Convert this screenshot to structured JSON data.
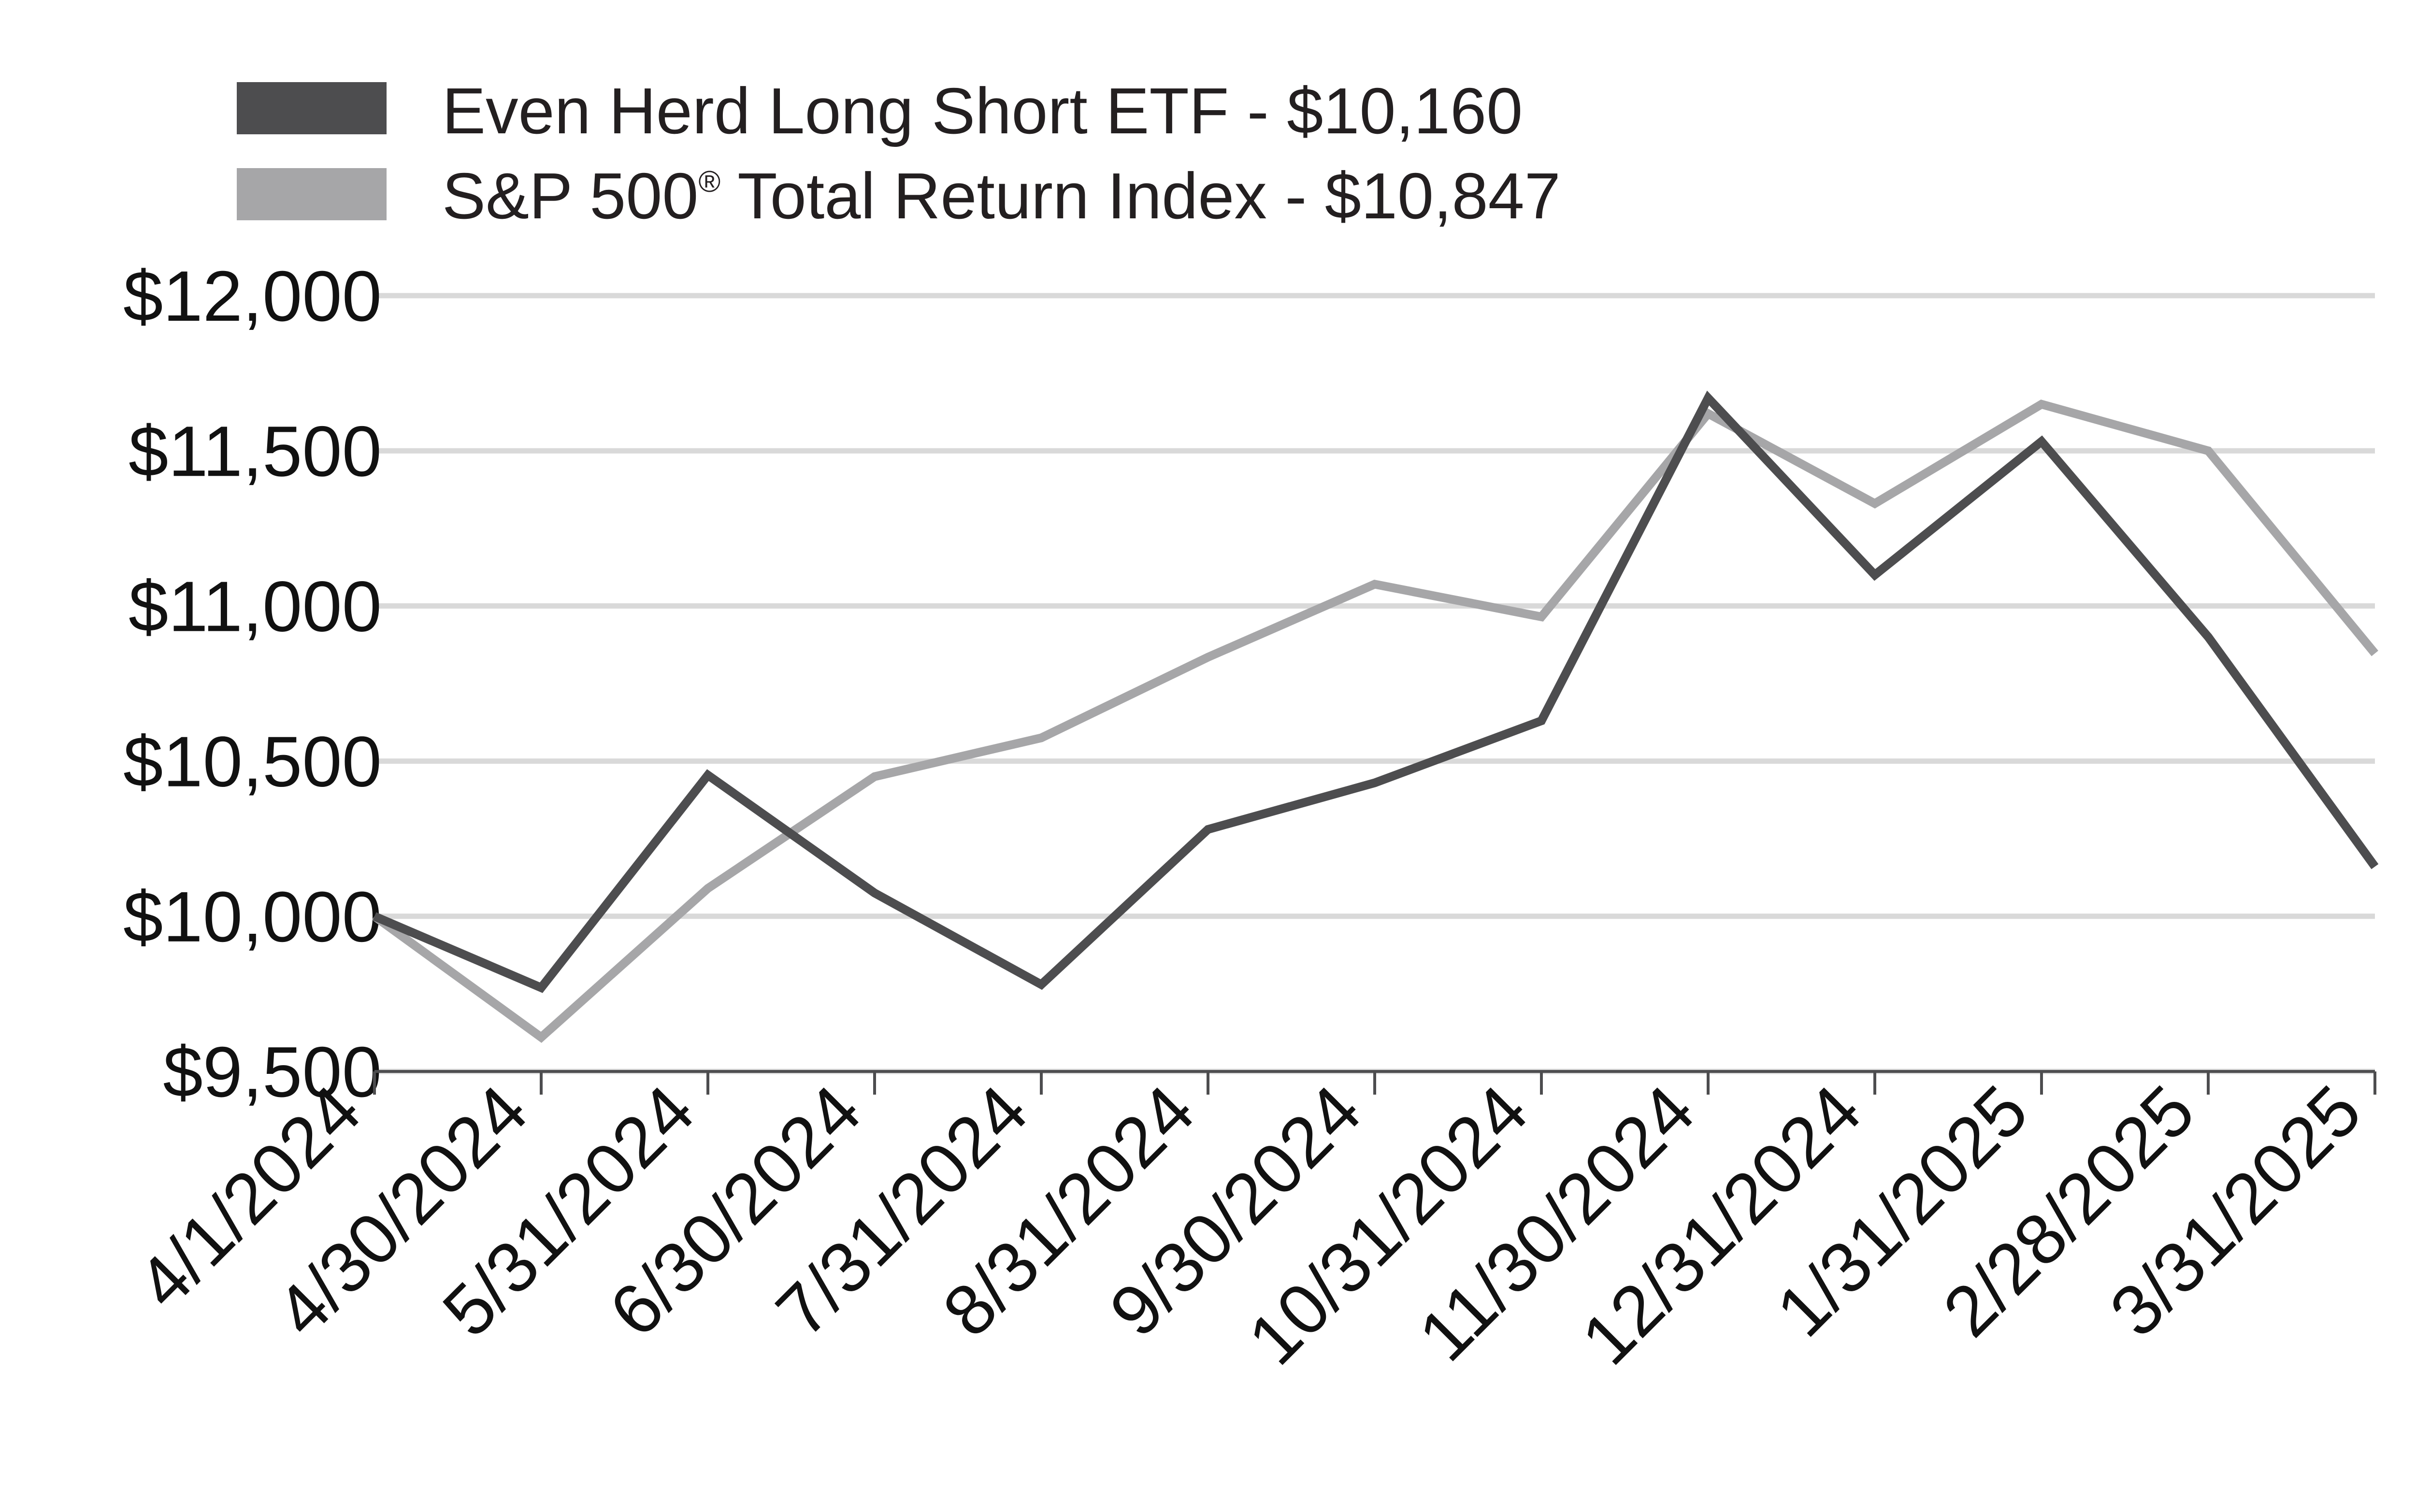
{
  "chart_data": {
    "type": "line",
    "x": [
      "4/1/2024",
      "4/30/2024",
      "5/31/2024",
      "6/30/2024",
      "7/31/2024",
      "8/31/2024",
      "9/30/2024",
      "10/31/2024",
      "11/30/2024",
      "12/31/2024",
      "1/31/2025",
      "2/28/2025",
      "3/31/2025"
    ],
    "series": [
      {
        "name": "Even Herd Long Short ETF - $10,160",
        "color": "#4d4d4f",
        "values": [
          10000,
          9770,
          10455,
          10075,
          9780,
          10280,
          10430,
          10630,
          11670,
          11100,
          11530,
          10900,
          10160
        ]
      },
      {
        "name_parts": [
          "S&P 500",
          "®",
          " Total Return Index - $10,847"
        ],
        "color": "#a6a6a8",
        "values": [
          10000,
          9610,
          10090,
          10450,
          10575,
          10835,
          11070,
          10965,
          11620,
          11330,
          11650,
          11500,
          10847
        ]
      }
    ],
    "ylim": [
      9500,
      12000
    ],
    "yticks": [
      9500,
      10000,
      10500,
      11000,
      11500,
      12000
    ],
    "ytick_labels": [
      "$9,500",
      "$10,000",
      "$10,500",
      "$11,000",
      "$11,500",
      "$12,000"
    ],
    "grid": true,
    "legend_position": "top-left"
  },
  "colors": {
    "gridline": "#d9d9d9",
    "axis": "#4d4d4f"
  }
}
